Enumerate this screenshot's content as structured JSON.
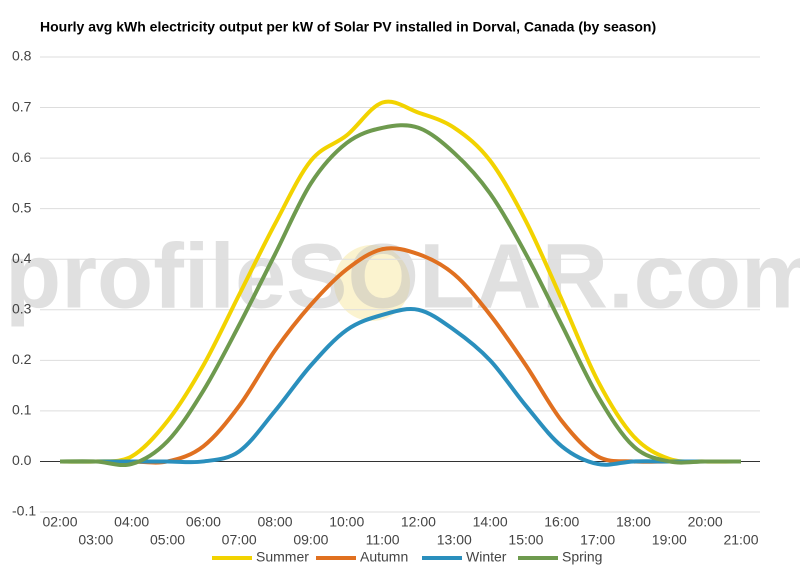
{
  "chart_data": {
    "type": "line",
    "title": "Hourly avg kWh electricity output per kW of Solar PV installed in Dorval, Canada (by season)",
    "watermark": "profileSOLAR.com",
    "categories": [
      "02:00",
      "03:00",
      "04:00",
      "05:00",
      "06:00",
      "07:00",
      "08:00",
      "09:00",
      "10:00",
      "11:00",
      "12:00",
      "13:00",
      "14:00",
      "15:00",
      "16:00",
      "17:00",
      "18:00",
      "19:00",
      "20:00",
      "21:00"
    ],
    "series": [
      {
        "name": "Summer",
        "color": "#f2d300",
        "values": [
          0,
          0,
          0.01,
          0.08,
          0.19,
          0.33,
          0.47,
          0.595,
          0.645,
          0.71,
          0.69,
          0.66,
          0.595,
          0.475,
          0.32,
          0.16,
          0.05,
          0.005,
          0,
          0
        ]
      },
      {
        "name": "Autumn",
        "color": "#e07020",
        "values": [
          0,
          0,
          0,
          0,
          0.03,
          0.11,
          0.22,
          0.31,
          0.38,
          0.42,
          0.41,
          0.37,
          0.29,
          0.19,
          0.08,
          0.01,
          0,
          0,
          0,
          0
        ]
      },
      {
        "name": "Winter",
        "color": "#2a8fbd",
        "values": [
          0,
          0,
          0,
          0,
          0,
          0.02,
          0.1,
          0.19,
          0.26,
          0.29,
          0.3,
          0.26,
          0.2,
          0.11,
          0.03,
          -0.005,
          0,
          0,
          0,
          0
        ]
      },
      {
        "name": "Spring",
        "color": "#6e9a4e",
        "values": [
          0,
          0,
          -0.005,
          0.04,
          0.14,
          0.27,
          0.41,
          0.55,
          0.63,
          0.66,
          0.66,
          0.61,
          0.53,
          0.41,
          0.27,
          0.13,
          0.03,
          0,
          0,
          0
        ]
      }
    ],
    "ylim": [
      -0.1,
      0.8
    ],
    "yticks": [
      -0.1,
      {
        "value": 0,
        "label": "0.0"
      },
      0.1,
      0.2,
      0.3,
      0.4,
      0.5,
      0.6,
      0.7,
      0.8
    ],
    "grid": true
  }
}
